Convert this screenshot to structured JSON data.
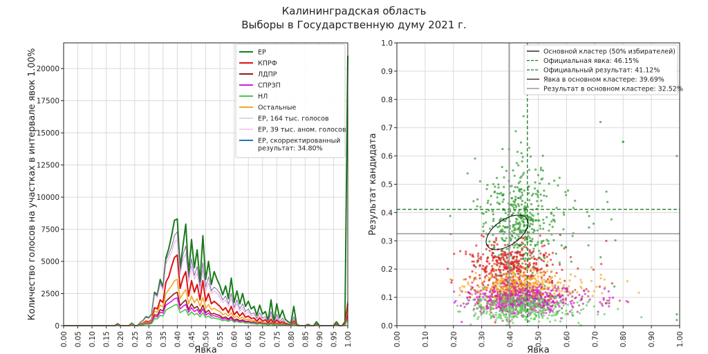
{
  "figure": {
    "title_line1": "Калининградская область",
    "title_line2": "Выборы в Государственную думу 2021 г."
  },
  "chart_data": [
    {
      "type": "line",
      "xlabel": "Явка",
      "ylabel": "Количество голосов на участках в интервале явок 1.00%",
      "xlim": [
        0,
        1
      ],
      "ylim": [
        0,
        22000
      ],
      "xticks": [
        "0.00",
        "0.05",
        "0.10",
        "0.15",
        "0.20",
        "0.25",
        "0.30",
        "0.35",
        "0.40",
        "0.45",
        "0.50",
        "0.55",
        "0.60",
        "0.65",
        "0.70",
        "0.75",
        "0.80",
        "0.85",
        "0.90",
        "0.95",
        "1.00"
      ],
      "yticks": [
        "0",
        "2500",
        "5000",
        "7500",
        "10000",
        "12500",
        "15000",
        "17500",
        "20000"
      ],
      "grid": true,
      "legend_position": "top-right",
      "x": [
        0.0,
        0.18,
        0.19,
        0.2,
        0.21,
        0.22,
        0.23,
        0.24,
        0.25,
        0.26,
        0.27,
        0.28,
        0.29,
        0.3,
        0.31,
        0.32,
        0.33,
        0.34,
        0.35,
        0.36,
        0.37,
        0.38,
        0.39,
        0.4,
        0.41,
        0.42,
        0.43,
        0.44,
        0.45,
        0.46,
        0.47,
        0.48,
        0.49,
        0.5,
        0.51,
        0.52,
        0.53,
        0.54,
        0.55,
        0.56,
        0.57,
        0.58,
        0.59,
        0.6,
        0.61,
        0.62,
        0.63,
        0.64,
        0.65,
        0.66,
        0.67,
        0.68,
        0.69,
        0.7,
        0.71,
        0.72,
        0.73,
        0.74,
        0.75,
        0.76,
        0.77,
        0.78,
        0.79,
        0.8,
        0.81,
        0.82,
        0.83,
        0.84,
        0.85,
        0.86,
        0.87,
        0.88,
        0.89,
        0.9,
        0.91,
        0.92,
        0.93,
        0.94,
        0.95,
        0.96,
        0.97,
        0.98,
        0.99,
        1.0
      ],
      "series": [
        {
          "name": "ЕР",
          "color": "#1a7a1a",
          "width": 2,
          "values": [
            0,
            0,
            150,
            0,
            0,
            0,
            0,
            200,
            0,
            0,
            250,
            400,
            700,
            600,
            900,
            2600,
            2400,
            3600,
            3000,
            5300,
            6000,
            7000,
            8200,
            8300,
            4500,
            6200,
            7900,
            4000,
            6700,
            4500,
            5900,
            3400,
            7000,
            3600,
            5000,
            3200,
            4200,
            3600,
            3100,
            2400,
            3100,
            2100,
            3700,
            1800,
            2700,
            1700,
            2500,
            1500,
            1900,
            1300,
            1500,
            800,
            1600,
            900,
            1100,
            400,
            2000,
            300,
            1700,
            600,
            1200,
            500,
            300,
            200,
            1500,
            100,
            0,
            0,
            0,
            100,
            0,
            0,
            300,
            0,
            0,
            0,
            0,
            0,
            0,
            300,
            0,
            0,
            300,
            21000
          ]
        },
        {
          "name": "ЕР, 164 тыс. голосов",
          "color": "#7e57a4",
          "width": 0.9,
          "values": [
            0,
            0,
            140,
            0,
            0,
            0,
            0,
            190,
            0,
            0,
            240,
            380,
            650,
            580,
            850,
            2500,
            2300,
            3400,
            2900,
            5100,
            5600,
            6100,
            7000,
            7300,
            4200,
            5500,
            6200,
            3700,
            5200,
            3900,
            4600,
            3000,
            4900,
            3000,
            3800,
            2700,
            3000,
            2800,
            2500,
            2000,
            2300,
            1700,
            2500,
            1400,
            2000,
            1300,
            1700,
            1100,
            1300,
            900,
            1000,
            600,
            1000,
            600,
            700,
            300,
            1100,
            200,
            900,
            300,
            600,
            250,
            150,
            100,
            700,
            50,
            0,
            0,
            0,
            50,
            0,
            0,
            150,
            0,
            0,
            0,
            0,
            0,
            0,
            150,
            0,
            0,
            150,
            2000
          ]
        },
        {
          "name": "ЕР, 39 тыс. аном. голосов",
          "color": "#d9a8d9",
          "width": 0.9,
          "values": [
            0,
            0,
            130,
            0,
            0,
            0,
            0,
            180,
            0,
            0,
            230,
            360,
            620,
            550,
            800,
            2400,
            2200,
            3200,
            2750,
            4800,
            5300,
            5700,
            6500,
            6700,
            4000,
            5100,
            5600,
            3400,
            4700,
            3600,
            4100,
            2800,
            4300,
            2700,
            3300,
            2500,
            2700,
            2500,
            2200,
            1800,
            2000,
            1500,
            2100,
            1200,
            1700,
            1100,
            1400,
            900,
            1100,
            750,
            850,
            500,
            800,
            500,
            550,
            250,
            800,
            150,
            700,
            250,
            450,
            200,
            120,
            80,
            500,
            40,
            0,
            0,
            0,
            40,
            0,
            0,
            120,
            0,
            0,
            0,
            0,
            0,
            0,
            120,
            0,
            0,
            120,
            1700
          ]
        },
        {
          "name": "КПРФ",
          "color": "#dd1111",
          "width": 2,
          "values": [
            0,
            0,
            80,
            0,
            0,
            0,
            0,
            100,
            0,
            0,
            120,
            200,
            350,
            300,
            450,
            1400,
            1300,
            2000,
            1800,
            3400,
            3800,
            4600,
            5300,
            5500,
            2900,
            3700,
            4200,
            2300,
            3500,
            2600,
            3200,
            2000,
            3500,
            1900,
            2500,
            1700,
            1900,
            1700,
            1500,
            1200,
            1400,
            1000,
            1500,
            850,
            1100,
            750,
            1000,
            650,
            750,
            550,
            600,
            350,
            600,
            350,
            450,
            200,
            500,
            150,
            450,
            200,
            300,
            150,
            100,
            60,
            350,
            30,
            0,
            0,
            0,
            30,
            0,
            0,
            80,
            0,
            0,
            0,
            0,
            0,
            0,
            80,
            0,
            0,
            80,
            1700
          ]
        },
        {
          "name": "Остальные",
          "color": "#f5a623",
          "width": 1.6,
          "values": [
            0,
            0,
            60,
            0,
            0,
            0,
            0,
            80,
            0,
            0,
            100,
            160,
            280,
            250,
            380,
            1100,
            1050,
            1600,
            1450,
            2500,
            2800,
            3100,
            3500,
            3600,
            2100,
            2500,
            2800,
            1700,
            2300,
            1800,
            2100,
            1500,
            2200,
            1350,
            1650,
            1250,
            1350,
            1200,
            1100,
            850,
            950,
            750,
            1000,
            600,
            750,
            550,
            650,
            450,
            500,
            380,
            400,
            250,
            350,
            250,
            250,
            120,
            300,
            90,
            250,
            100,
            170,
            80,
            50,
            35,
            250,
            20,
            0,
            0,
            0,
            20,
            0,
            0,
            60,
            0,
            0,
            0,
            0,
            0,
            0,
            60,
            0,
            0,
            60,
            1000
          ]
        },
        {
          "name": "ЛДПР",
          "color": "#8b1a1a",
          "width": 1.6,
          "values": [
            0,
            0,
            40,
            0,
            0,
            0,
            0,
            50,
            0,
            0,
            70,
            110,
            200,
            180,
            270,
            850,
            800,
            1250,
            1150,
            1900,
            2100,
            2300,
            2500,
            2600,
            1550,
            1800,
            2000,
            1250,
            1700,
            1350,
            1500,
            1100,
            1600,
            1000,
            1200,
            900,
            950,
            850,
            780,
            600,
            680,
            520,
            700,
            420,
            520,
            380,
            450,
            320,
            350,
            260,
            280,
            170,
            250,
            170,
            180,
            80,
            200,
            60,
            180,
            70,
            120,
            55,
            35,
            25,
            170,
            15,
            0,
            0,
            0,
            15,
            0,
            0,
            40,
            0,
            0,
            0,
            0,
            0,
            0,
            40,
            0,
            0,
            40,
            800
          ]
        },
        {
          "name": "СПРЗП",
          "color": "#e013e0",
          "width": 1.6,
          "values": [
            0,
            0,
            35,
            0,
            0,
            0,
            0,
            45,
            0,
            0,
            60,
            95,
            170,
            150,
            230,
            720,
            680,
            1050,
            980,
            1600,
            1750,
            1900,
            2100,
            2150,
            1300,
            1500,
            1650,
            1050,
            1400,
            1100,
            1250,
            900,
            1300,
            820,
            980,
            740,
            780,
            700,
            640,
            500,
            560,
            430,
            580,
            350,
            430,
            320,
            370,
            260,
            290,
            210,
            230,
            140,
            200,
            140,
            150,
            65,
            160,
            50,
            150,
            55,
            100,
            45,
            30,
            20,
            140,
            12,
            0,
            0,
            0,
            12,
            0,
            0,
            32,
            0,
            0,
            0,
            0,
            0,
            0,
            32,
            0,
            0,
            32,
            650
          ]
        },
        {
          "name": "НЛ",
          "color": "#4cc44c",
          "width": 1.6,
          "values": [
            0,
            0,
            25,
            0,
            0,
            0,
            0,
            35,
            0,
            0,
            45,
            70,
            130,
            110,
            170,
            550,
            520,
            800,
            750,
            1200,
            1350,
            1450,
            1600,
            1650,
            1000,
            1150,
            1260,
            800,
            1070,
            850,
            960,
            690,
            1000,
            630,
            750,
            570,
            600,
            540,
            490,
            380,
            430,
            330,
            440,
            270,
            330,
            240,
            280,
            200,
            220,
            160,
            170,
            110,
            150,
            105,
            115,
            50,
            125,
            38,
            115,
            42,
            75,
            34,
            22,
            15,
            105,
            9,
            0,
            0,
            0,
            9,
            0,
            0,
            25,
            0,
            0,
            0,
            0,
            0,
            0,
            25,
            0,
            0,
            25,
            500
          ]
        }
      ],
      "legend": [
        {
          "label": "ЕР",
          "color": "#1a7a1a",
          "style": "solid"
        },
        {
          "label": "КПРФ",
          "color": "#dd1111",
          "style": "solid"
        },
        {
          "label": "ЛДПР",
          "color": "#8b1a1a",
          "style": "solid"
        },
        {
          "label": "СПРЗП",
          "color": "#e013e0",
          "style": "solid"
        },
        {
          "label": "НЛ",
          "color": "#4cc44c",
          "style": "solid"
        },
        {
          "label": "Остальные",
          "color": "#f5a623",
          "style": "solid"
        },
        {
          "label": "ЕР, 164 тыс. голосов",
          "color": "#c9a9d9",
          "style": "thin"
        },
        {
          "label": "ЕР, 39 тыс. аном. голосов",
          "color": "#e0a0e0",
          "style": "thin"
        },
        {
          "label": "ЕР, скорректированный",
          "label2": "результат: 34.80%",
          "color": "#1f77b4",
          "style": "solid"
        }
      ]
    },
    {
      "type": "scatter",
      "xlabel": "Явка",
      "ylabel": "Результат кандидата",
      "xlim": [
        0,
        1
      ],
      "ylim": [
        0,
        1
      ],
      "xticks": [
        "0.00",
        "0.10",
        "0.20",
        "0.30",
        "0.40",
        "0.50",
        "0.60",
        "0.70",
        "0.80",
        "0.90",
        "1.00"
      ],
      "yticks": [
        "0.0",
        "0.1",
        "0.2",
        "0.3",
        "0.4",
        "0.5",
        "0.6",
        "0.7",
        "0.8",
        "0.9",
        "1.0"
      ],
      "grid": true,
      "legend_position": "top-right",
      "official_turnout": 0.4615,
      "official_result": 0.4112,
      "cluster_turnout": 0.3969,
      "cluster_result": 0.3252,
      "cluster_ellipse": {
        "cx": 0.39,
        "cy": 0.33,
        "rx": 0.085,
        "ry": 0.045,
        "angle_deg": 35
      },
      "legend": [
        {
          "label": "Основной кластер (50% избирателей)",
          "color": "#000000",
          "style": "solid"
        },
        {
          "label": "Официальная явка: 46.15%",
          "color": "#1a7a1a",
          "style": "dashed"
        },
        {
          "label": "Официальный результат: 41.12%",
          "color": "#1a7a1a",
          "style": "dashed"
        },
        {
          "label": "Явка в основном кластере: 39.69%",
          "color": "#222222",
          "style": "solid"
        },
        {
          "label": "Результат в основном кластере: 32.52%",
          "color": "#888888",
          "style": "solid"
        }
      ],
      "series": [
        {
          "name": "ЕР",
          "color": "#2e9a2e",
          "cx": 0.43,
          "cy": 0.36,
          "sx": 0.06,
          "sy": 0.1,
          "n": 480
        },
        {
          "name": "КПРФ",
          "color": "#e02020",
          "cx": 0.4,
          "cy": 0.2,
          "sx": 0.07,
          "sy": 0.05,
          "n": 420
        },
        {
          "name": "Остальные",
          "color": "#f5a623",
          "cx": 0.43,
          "cy": 0.14,
          "sx": 0.08,
          "sy": 0.03,
          "n": 380
        },
        {
          "name": "ЛДПР",
          "color": "#b85050",
          "cx": 0.43,
          "cy": 0.1,
          "sx": 0.09,
          "sy": 0.025,
          "n": 300
        },
        {
          "name": "СПРЗП",
          "color": "#d21dd2",
          "cx": 0.43,
          "cy": 0.09,
          "sx": 0.09,
          "sy": 0.025,
          "n": 360
        },
        {
          "name": "НЛ",
          "color": "#5ccc5c",
          "cx": 0.43,
          "cy": 0.06,
          "sx": 0.09,
          "sy": 0.025,
          "n": 320
        }
      ]
    }
  ]
}
